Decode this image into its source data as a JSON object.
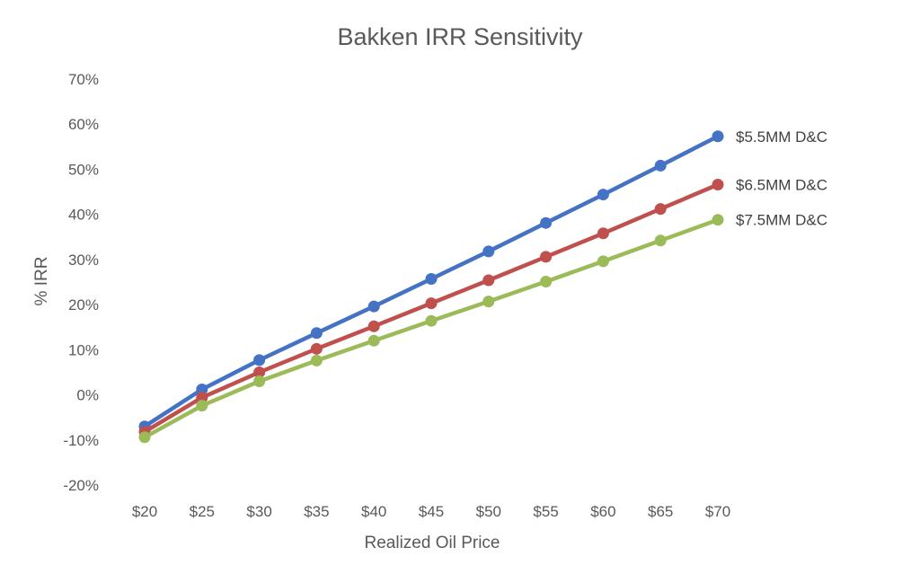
{
  "chart_data": {
    "type": "line",
    "title": "Bakken IRR Sensitivity",
    "xlabel": "Realized Oil Price",
    "ylabel": "% IRR",
    "categories": [
      "$20",
      "$25",
      "$30",
      "$35",
      "$40",
      "$45",
      "$50",
      "$55",
      "$60",
      "$65",
      "$70"
    ],
    "x_values": [
      20,
      25,
      30,
      35,
      40,
      45,
      50,
      55,
      60,
      65,
      70
    ],
    "ylim": [
      -20,
      70
    ],
    "yticks": [
      -20,
      -10,
      0,
      10,
      20,
      30,
      40,
      50,
      60,
      70
    ],
    "ytick_labels": [
      "-20%",
      "-10%",
      "0%",
      "10%",
      "20%",
      "30%",
      "40%",
      "50%",
      "60%",
      "70%"
    ],
    "grid": false,
    "legend": "series labels at right end of lines",
    "series": [
      {
        "name": "$5.5MM D&C",
        "color": "#4472C4",
        "values": [
          -7,
          1.2,
          7.7,
          13.7,
          19.6,
          25.7,
          31.8,
          38.1,
          44.4,
          50.8,
          57.3
        ]
      },
      {
        "name": "$6.5MM D&C",
        "color": "#C0504D",
        "values": [
          -8.2,
          -0.6,
          5,
          10.2,
          15.2,
          20.3,
          25.4,
          30.6,
          35.8,
          41.2,
          46.6
        ]
      },
      {
        "name": "$7.5MM D&C",
        "color": "#9BBB59",
        "values": [
          -9.4,
          -2.4,
          3,
          7.6,
          12,
          16.4,
          20.7,
          25.1,
          29.6,
          34.2,
          38.8
        ]
      }
    ]
  }
}
